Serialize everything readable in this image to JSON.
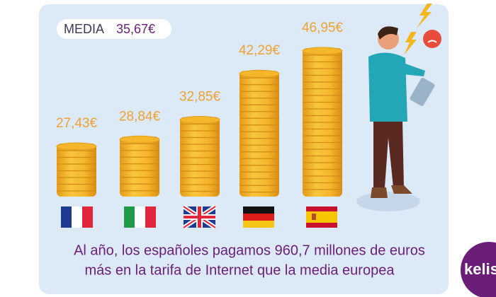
{
  "chart_data": {
    "type": "coin-stacks",
    "average_title": "MEDIA",
    "average_label": "35,67€",
    "categories": [
      null,
      null,
      null,
      null,
      null
    ],
    "values": [
      27.43,
      28.84,
      32.85,
      42.29,
      46.95
    ],
    "value_labels": [
      "27,43€",
      "28,84€",
      "32,85€",
      "42,29€",
      "46,95€"
    ],
    "color": "#f5b62c",
    "caption": [
      "Al año, los españoles pagamos 960,7 millones de euros",
      "más en la tarifa de Internet que la media europea"
    ],
    "logo": "kelist"
  }
}
